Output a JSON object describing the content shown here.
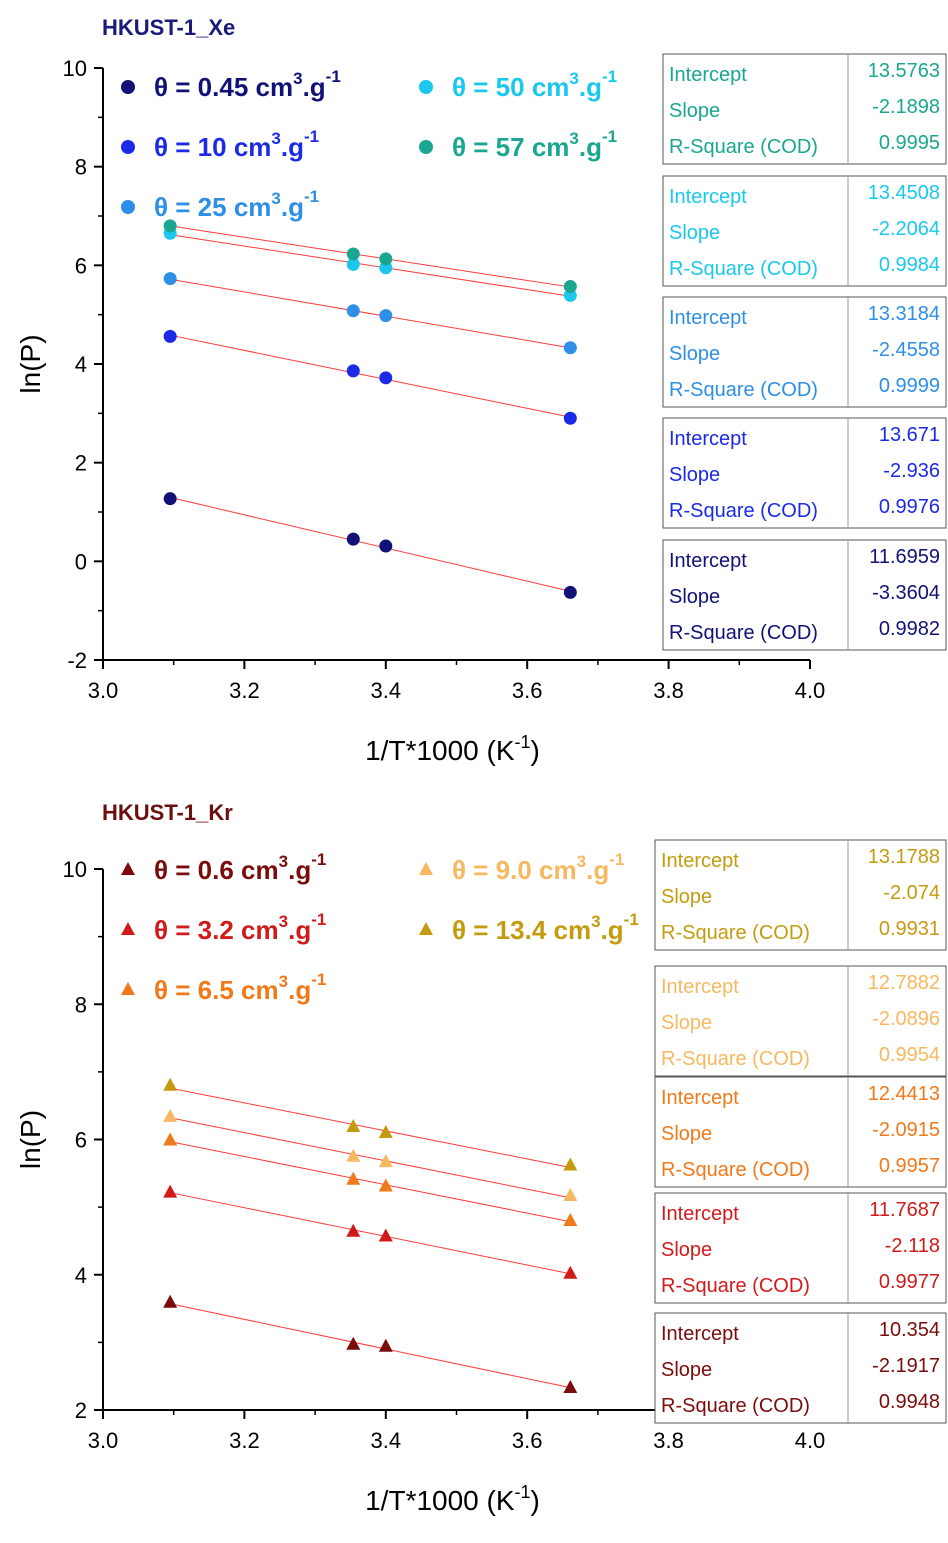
{
  "chart_data": [
    {
      "type": "scatter",
      "title": "HKUST-1_Xe",
      "title_color": "#1a1a7a",
      "xlabel": "1/T*1000 (K",
      "xlabel_sup": "-1",
      "xlabel_end": ")",
      "ylabel": "ln(P)",
      "xlim": [
        3.0,
        4.0
      ],
      "ylim": [
        -2,
        10
      ],
      "x_ticks": [
        "3.0",
        "3.2",
        "3.4",
        "3.6",
        "3.8",
        "4.0"
      ],
      "y_ticks": [
        "-2",
        "0",
        "2",
        "4",
        "6",
        "8",
        "10"
      ],
      "marker": "circle",
      "fit_color": "#ff3b3b",
      "x": [
        3.095,
        3.354,
        3.4,
        3.661
      ],
      "series": [
        {
          "name_main": "θ = 0.45 cm",
          "name_mid": ".g",
          "color": "#111177",
          "y": [
            1.27,
            0.45,
            0.31,
            -0.63
          ],
          "intercept": "11.6959",
          "slope": "-3.3604",
          "r2": "0.9982"
        },
        {
          "name_main": "θ = 10 cm",
          "name_mid": ".g",
          "color": "#1a2ae6",
          "y": [
            4.56,
            3.86,
            3.72,
            2.9
          ],
          "intercept": "13.671",
          "slope": "-2.936",
          "r2": "0.9976"
        },
        {
          "name_main": "θ = 25 cm",
          "name_mid": ".g",
          "color": "#2e8fe6",
          "y": [
            5.73,
            5.08,
            4.98,
            4.33
          ],
          "intercept": "13.3184",
          "slope": "-2.4558",
          "r2": "0.9999"
        },
        {
          "name_main": "θ = 50 cm",
          "name_mid": ".g",
          "color": "#19c8ec",
          "y": [
            6.65,
            6.02,
            5.95,
            5.39
          ],
          "intercept": "13.4508",
          "slope": "-2.2064",
          "r2": "0.9984"
        },
        {
          "name_main": "θ = 57 cm",
          "name_mid": ".g",
          "color": "#1aa690",
          "y": [
            6.8,
            6.23,
            6.13,
            5.57
          ],
          "intercept": "13.5763",
          "slope": "-2.1898",
          "r2": "0.9995"
        }
      ]
    },
    {
      "type": "scatter",
      "title": "HKUST-1_Kr",
      "title_color": "#6b0f0f",
      "xlabel": "1/T*1000 (K",
      "xlabel_sup": "-1",
      "xlabel_end": ")",
      "ylabel": "ln(P)",
      "xlim": [
        3.0,
        4.0
      ],
      "ylim": [
        2,
        10
      ],
      "x_ticks": [
        "3.0",
        "3.2",
        "3.4",
        "3.6",
        "3.8",
        "4.0"
      ],
      "y_ticks": [
        "2",
        "4",
        "6",
        "8",
        "10"
      ],
      "marker": "triangle",
      "fit_color": "#ff3b3b",
      "x": [
        3.095,
        3.354,
        3.4,
        3.661
      ],
      "series": [
        {
          "name_main": "θ = 0.6 cm",
          "name_mid": ".g",
          "color": "#7a0c0c",
          "y": [
            3.6,
            2.98,
            2.95,
            2.34
          ],
          "intercept": "10.354",
          "slope": "-2.1917",
          "r2": "0.9948"
        },
        {
          "name_main": "θ = 3.2 cm",
          "name_mid": ".g",
          "color": "#d11a1a",
          "y": [
            5.23,
            4.65,
            4.58,
            4.03
          ],
          "intercept": "11.7687",
          "slope": "-2.118",
          "r2": "0.9977"
        },
        {
          "name_main": "θ = 6.5 cm",
          "name_mid": ".g",
          "color": "#f07a1a",
          "y": [
            6.0,
            5.42,
            5.32,
            4.81
          ],
          "intercept": "12.4413",
          "slope": "-2.0915",
          "r2": "0.9957"
        },
        {
          "name_main": "θ = 9.0 cm",
          "name_mid": ".g",
          "color": "#f7b860",
          "y": [
            6.35,
            5.76,
            5.68,
            5.18
          ],
          "intercept": "12.7882",
          "slope": "-2.0896",
          "r2": "0.9954"
        },
        {
          "name_main": "θ = 13.4 cm",
          "name_mid": ".g",
          "color": "#c49b0e",
          "y": [
            6.81,
            6.2,
            6.11,
            5.63
          ],
          "intercept": "13.1788",
          "slope": "-2.074",
          "r2": "0.9931"
        }
      ]
    }
  ],
  "legend_sup_cm": "3",
  "legend_sup_g": "-1",
  "stat_labels": {
    "intercept": "Intercept",
    "slope": "Slope",
    "r2": "R-Square (COD)"
  }
}
